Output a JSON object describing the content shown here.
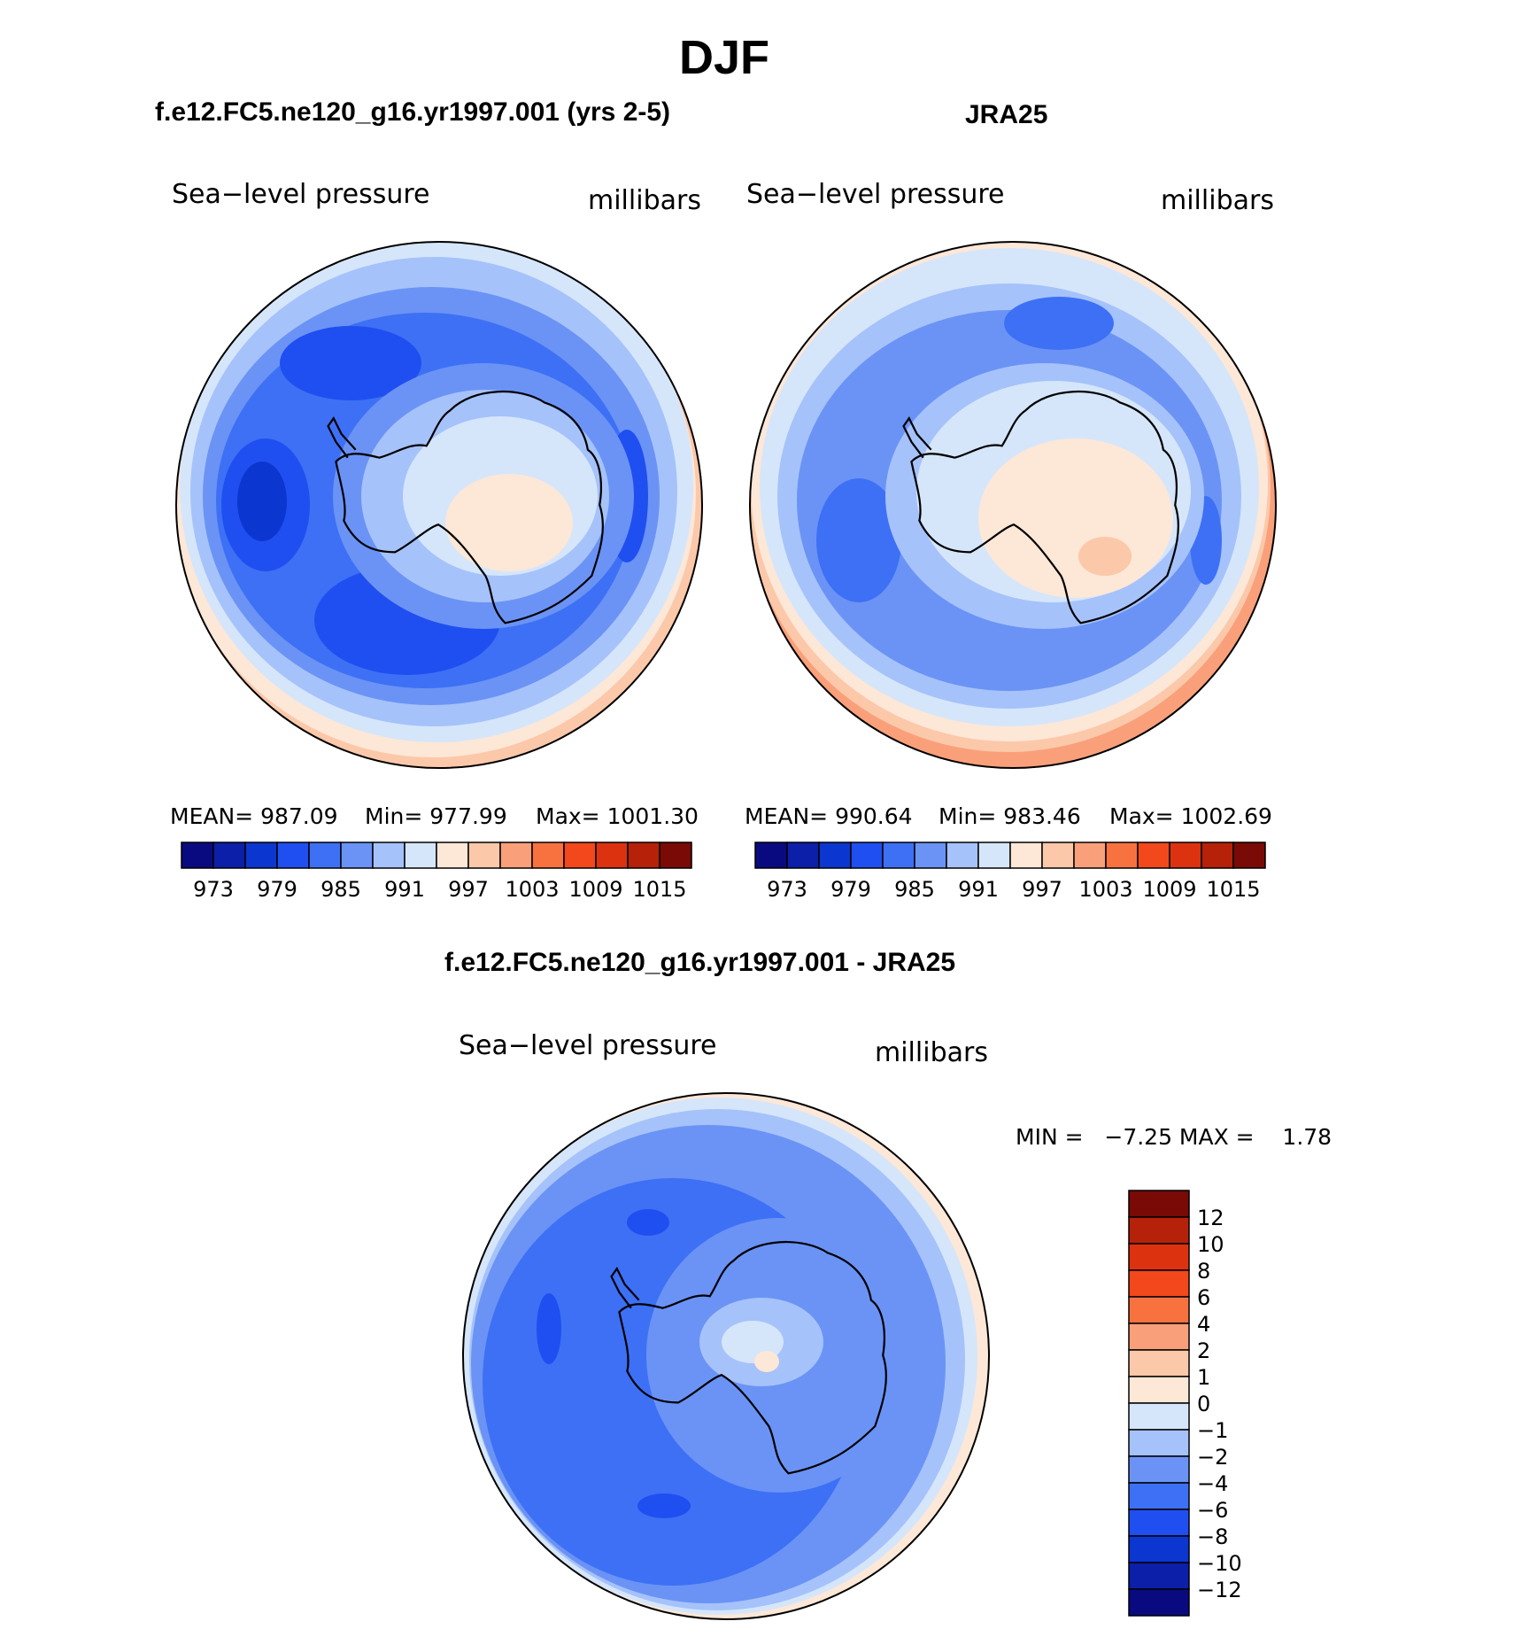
{
  "figure": {
    "season": "DJF",
    "model_title": "f.e12.FC5.ne120_g16.yr1997.001 (yrs 2-5)",
    "obs_title": "JRA25",
    "diff_title": "f.e12.FC5.ne120_g16.yr1997.001 - JRA25"
  },
  "panels": {
    "model": {
      "variable": "Sea−level pressure",
      "units": "millibars",
      "mean_label": "MEAN= 987.09",
      "min_label": "Min= 977.99",
      "max_label": "Max= 1001.30"
    },
    "obs": {
      "variable": "Sea−level pressure",
      "units": "millibars",
      "mean_label": "MEAN= 990.64",
      "min_label": "Min= 983.46",
      "max_label": "Max= 1002.69"
    },
    "diff": {
      "variable": "Sea−level pressure",
      "units": "millibars",
      "minmax_label": "MIN =   −7.25 MAX =    1.78"
    }
  },
  "colorbar_field": {
    "colors": [
      "#0a0a80",
      "#0b1fa8",
      "#0c36d0",
      "#1f4ff0",
      "#3d70f5",
      "#6a93f5",
      "#a6c2fa",
      "#d5e6fb",
      "#fde7d7",
      "#fcc8aa",
      "#f9a07a",
      "#f7723f",
      "#f3481c",
      "#dd3210",
      "#b62109",
      "#7a0a05"
    ],
    "tick_labels": [
      "973",
      "979",
      "985",
      "991",
      "997",
      "1003",
      "1009",
      "1015"
    ]
  },
  "colorbar_diff": {
    "colors": [
      "#7a0a05",
      "#b62109",
      "#dd3210",
      "#f3481c",
      "#f7723f",
      "#f9a07a",
      "#fcc8aa",
      "#fde7d7",
      "#d5e6fb",
      "#a6c2fa",
      "#6a93f5",
      "#3d70f5",
      "#1f4ff0",
      "#0c36d0",
      "#0b1fa8",
      "#0a0a80"
    ],
    "tick_labels": [
      "12",
      "10",
      "8",
      "6",
      "4",
      "2",
      "1",
      "0",
      "−1",
      "−2",
      "−4",
      "−6",
      "−8",
      "−10",
      "−12"
    ]
  },
  "map_colors": {
    "c975": "#0c36d0",
    "c978": "#1f4ff0",
    "c982": "#3d70f5",
    "c985": "#6a93f5",
    "c988": "#a6c2fa",
    "c991": "#d5e6fb",
    "c994": "#fde7d7",
    "c997": "#fcc8aa",
    "c1000": "#f9a07a"
  }
}
